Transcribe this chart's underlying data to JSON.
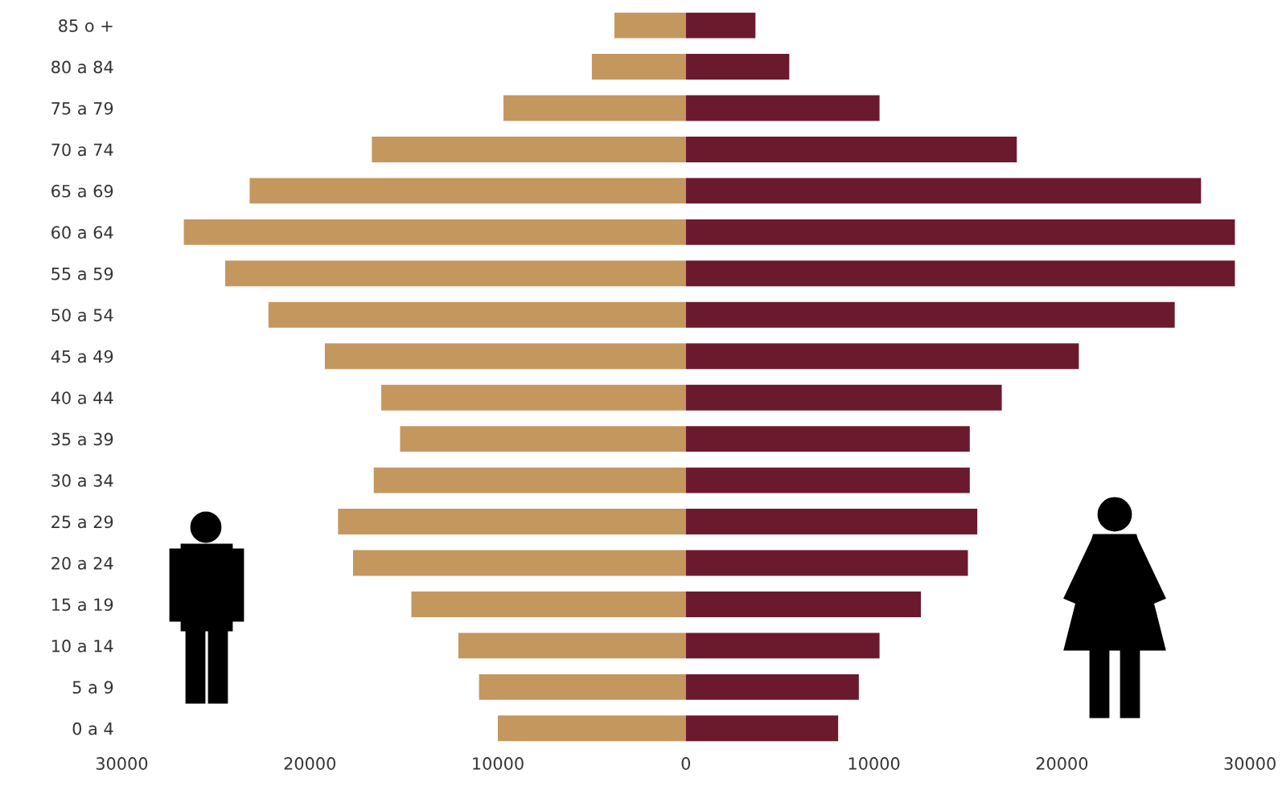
{
  "chart_data": {
    "type": "bar",
    "orientation": "horizontal",
    "categories": [
      "85 o +",
      "80 a 84",
      "75 a 79",
      "70 a 74",
      "65 a 69",
      "60 a 64",
      "55 a 59",
      "50 a 54",
      "45 a 49",
      "40 a 44",
      "35 a 39",
      "30 a 34",
      "25 a 29",
      "20 a 24",
      "15 a 19",
      "10 a 14",
      "5 a 9",
      "0 a 4"
    ],
    "series": [
      {
        "color": "#c4975f",
        "values": [
          -3800,
          -5000,
          -9700,
          -16700,
          -23200,
          -26700,
          -24500,
          -22200,
          -19200,
          -16200,
          -15200,
          -16600,
          -18500,
          -17700,
          -14600,
          -12100,
          -11000,
          -10000
        ]
      },
      {
        "color": "#6b1a2e",
        "values": [
          3700,
          5500,
          10300,
          17600,
          27400,
          29200,
          29200,
          26000,
          20900,
          16800,
          15100,
          15100,
          15500,
          15000,
          12500,
          10300,
          9200,
          8100
        ]
      }
    ],
    "xlim": [
      -30000,
      30000
    ],
    "stacked": true,
    "xticks": [
      {
        "value": -30000,
        "label": "30000"
      },
      {
        "value": -20000,
        "label": "20000"
      },
      {
        "value": -10000,
        "label": "10000"
      },
      0,
      10000,
      20000,
      30000
    ],
    "grid": false,
    "legend": false
  }
}
